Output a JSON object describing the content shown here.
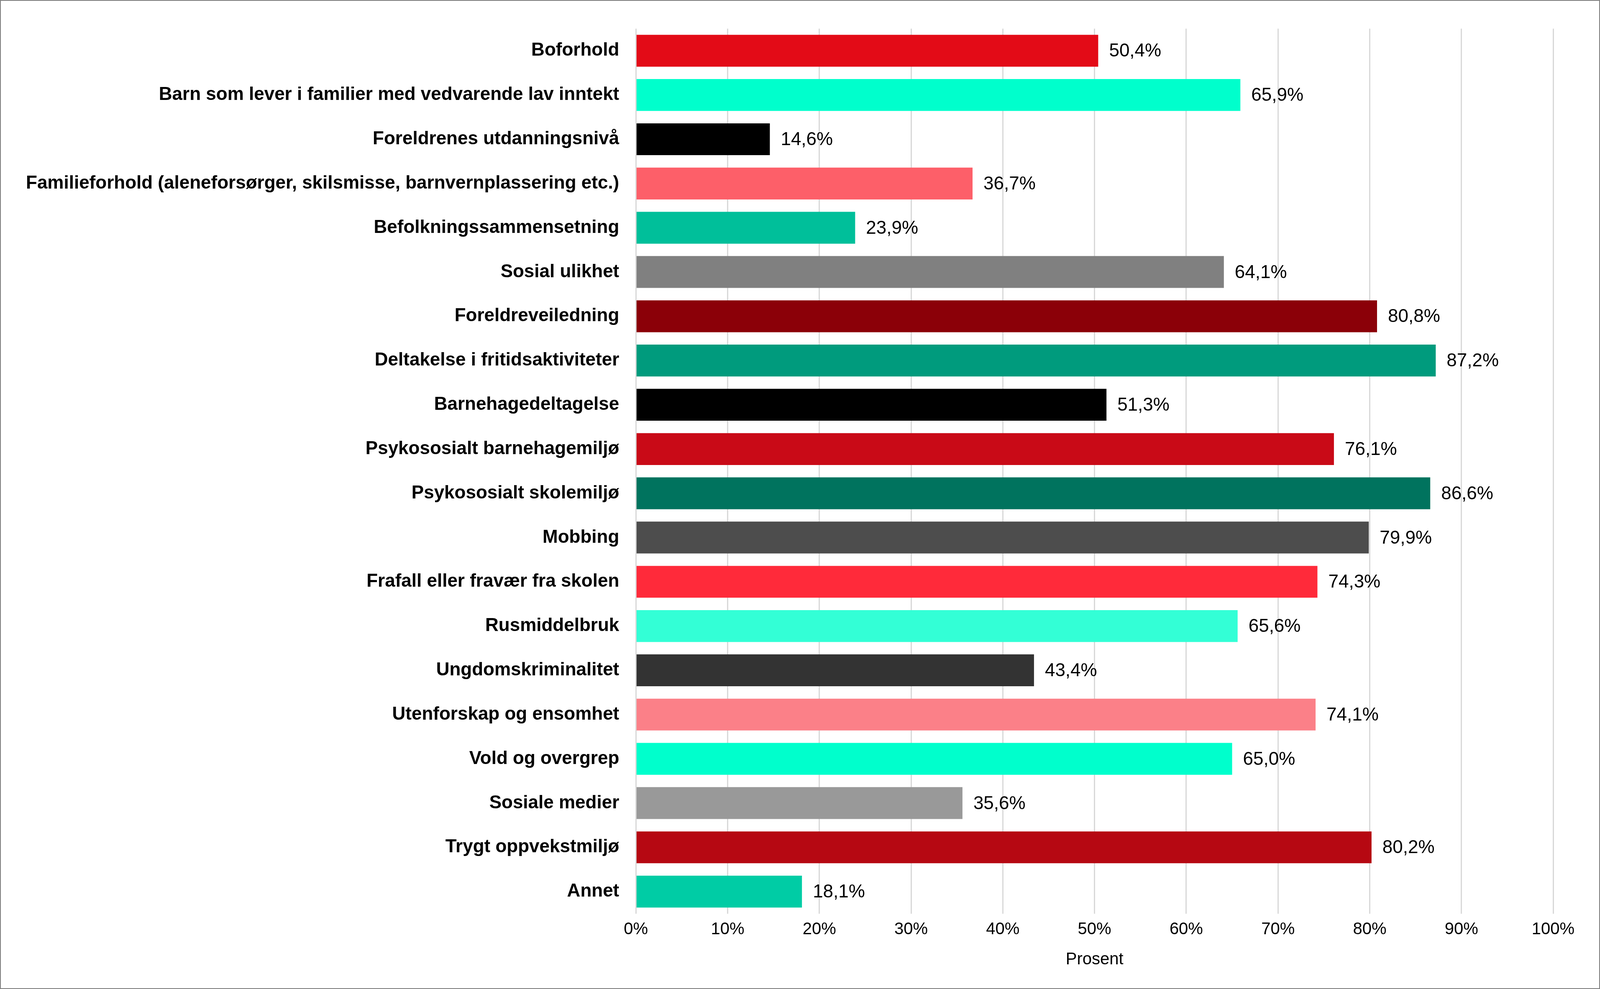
{
  "chart_data": {
    "type": "bar",
    "orientation": "horizontal",
    "categories": [
      "Boforhold",
      "Barn som lever i familier med vedvarende lav inntekt",
      "Foreldrenes utdanningsnivå",
      "Familieforhold (aleneforsørger, skilsmisse, barnvernplassering etc.)",
      "Befolkningssammensetning",
      "Sosial ulikhet",
      "Foreldreveiledning",
      "Deltakelse i fritidsaktiviteter",
      "Barnehagedeltagelse",
      "Psykososialt barnehagemiljø",
      "Psykososialt skolemiljø",
      "Mobbing",
      "Frafall eller fravær fra skolen",
      "Rusmiddelbruk",
      "Ungdomskriminalitet",
      "Utenforskap og ensomhet",
      "Vold og overgrep",
      "Sosiale medier",
      "Trygt oppvekstmiljø",
      "Annet"
    ],
    "values": [
      50.4,
      65.9,
      14.6,
      36.7,
      23.9,
      64.1,
      80.8,
      87.2,
      51.3,
      76.1,
      86.6,
      79.9,
      74.3,
      65.6,
      43.4,
      74.1,
      65.0,
      35.6,
      80.2,
      18.1
    ],
    "value_labels": [
      "50,4%",
      "65,9%",
      "14,6%",
      "36,7%",
      "23,9%",
      "64,1%",
      "80,8%",
      "87,2%",
      "51,3%",
      "76,1%",
      "86,6%",
      "79,9%",
      "74,3%",
      "65,6%",
      "43,4%",
      "74,1%",
      "65,0%",
      "35,6%",
      "80,2%",
      "18,1%"
    ],
    "data_labels": true,
    "colors": [
      "#e30b17",
      "#00ffcc",
      "#000000",
      "#fd5f69",
      "#00bf9a",
      "#808080",
      "#8b0008",
      "#009b7d",
      "#000000",
      "#c90a17",
      "#00735e",
      "#4d4d4d",
      "#ff2a3a",
      "#33ffd6",
      "#333333",
      "#fb8088",
      "#00ffcc",
      "#999999",
      "#b60812",
      "#00cca5"
    ],
    "x_label": "Prosent",
    "xlim": [
      0,
      100
    ],
    "xticks": [
      {
        "value": 0,
        "label": "0%"
      },
      {
        "value": 10,
        "label": "10%"
      },
      {
        "value": 20,
        "label": "20%"
      },
      {
        "value": 30,
        "label": "30%"
      },
      {
        "value": 40,
        "label": "40%"
      },
      {
        "value": 50,
        "label": "50%"
      },
      {
        "value": 60,
        "label": "60%"
      },
      {
        "value": 70,
        "label": "70%"
      },
      {
        "value": 80,
        "label": "80%"
      },
      {
        "value": 90,
        "label": "90%"
      },
      {
        "value": 100,
        "label": "100%"
      }
    ],
    "grid": true
  }
}
